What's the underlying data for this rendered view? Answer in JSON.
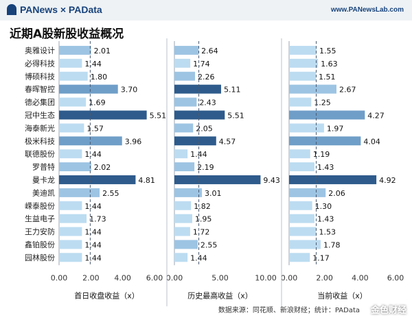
{
  "header": {
    "brand": "PANews × PAData",
    "site": "www.PANewsLab.com"
  },
  "title": "近期A股新股收益概况",
  "source_note": "数据来源：同花顺、新浪财经；统计：PAData",
  "watermark": "金色财经",
  "colors": {
    "dark": "#2e5b8c",
    "mid": "#6f9ec8",
    "light": "#9dc4e3",
    "lightest": "#bcdcf1",
    "vline": "#4a5a70"
  },
  "chart_data": {
    "type": "bar",
    "orientation": "horizontal",
    "categories": [
      "奥雅设计",
      "必得科技",
      "博硕科技",
      "春晖智控",
      "德必集团",
      "冠中生态",
      "海泰新光",
      "极米科技",
      "联德股份",
      "罗普特",
      "曼卡龙",
      "美迪凯",
      "嵘泰股份",
      "生益电子",
      "王力安防",
      "鑫铂股份",
      "园林股份"
    ],
    "panels": [
      {
        "xlabel": "首日收盘收益（x）",
        "xlim": [
          0,
          6
        ],
        "xticks": [
          "0.00",
          "2.00",
          "4.00",
          "6.00"
        ],
        "reference_line": 1.96,
        "values": [
          2.01,
          1.44,
          1.8,
          3.7,
          1.69,
          5.51,
          1.57,
          3.96,
          1.44,
          2.02,
          4.81,
          2.55,
          1.44,
          1.73,
          1.44,
          1.44,
          1.44
        ],
        "labels": [
          "2.01",
          "1.44",
          "1.80",
          "3.70",
          "1.69",
          "5.51",
          "1.57",
          "3.96",
          "1.44",
          "2.02",
          "4.81",
          "2.55",
          "1.44",
          "1.73",
          "1.44",
          "1.44",
          "1.44"
        ]
      },
      {
        "xlabel": "历史最高收益（x）",
        "xlim": [
          0,
          10
        ],
        "xticks": [
          "0.00",
          "5.00",
          "10.00"
        ],
        "reference_line": 2.67,
        "values": [
          2.64,
          1.74,
          2.26,
          5.11,
          2.43,
          5.51,
          2.05,
          4.57,
          1.44,
          2.19,
          9.43,
          3.01,
          1.82,
          1.95,
          1.72,
          2.55,
          1.44
        ],
        "labels": [
          "2.64",
          "1.74",
          "2.26",
          "5.11",
          "2.43",
          "5.51",
          "2.05",
          "4.57",
          "1.44",
          "2.19",
          "9.43",
          "3.01",
          "1.82",
          "1.95",
          "1.72",
          "2.55",
          "1.44"
        ]
      },
      {
        "xlabel": "当前收益（x）",
        "xlim": [
          0,
          6
        ],
        "xticks": [
          "0.00",
          "2.00",
          "4.00",
          "6.00"
        ],
        "reference_line": 1.53,
        "values": [
          1.55,
          1.63,
          1.51,
          2.67,
          1.25,
          4.27,
          1.97,
          4.04,
          1.19,
          1.43,
          4.92,
          2.06,
          1.3,
          1.43,
          1.53,
          1.78,
          1.17
        ],
        "labels": [
          "1.55",
          "1.63",
          "1.51",
          "2.67",
          "1.25",
          "4.27",
          "1.97",
          "4.04",
          "1.19",
          "1.43",
          "4.92",
          "2.06",
          "1.30",
          "1.43",
          "1.53",
          "1.78",
          "1.17"
        ]
      }
    ]
  }
}
